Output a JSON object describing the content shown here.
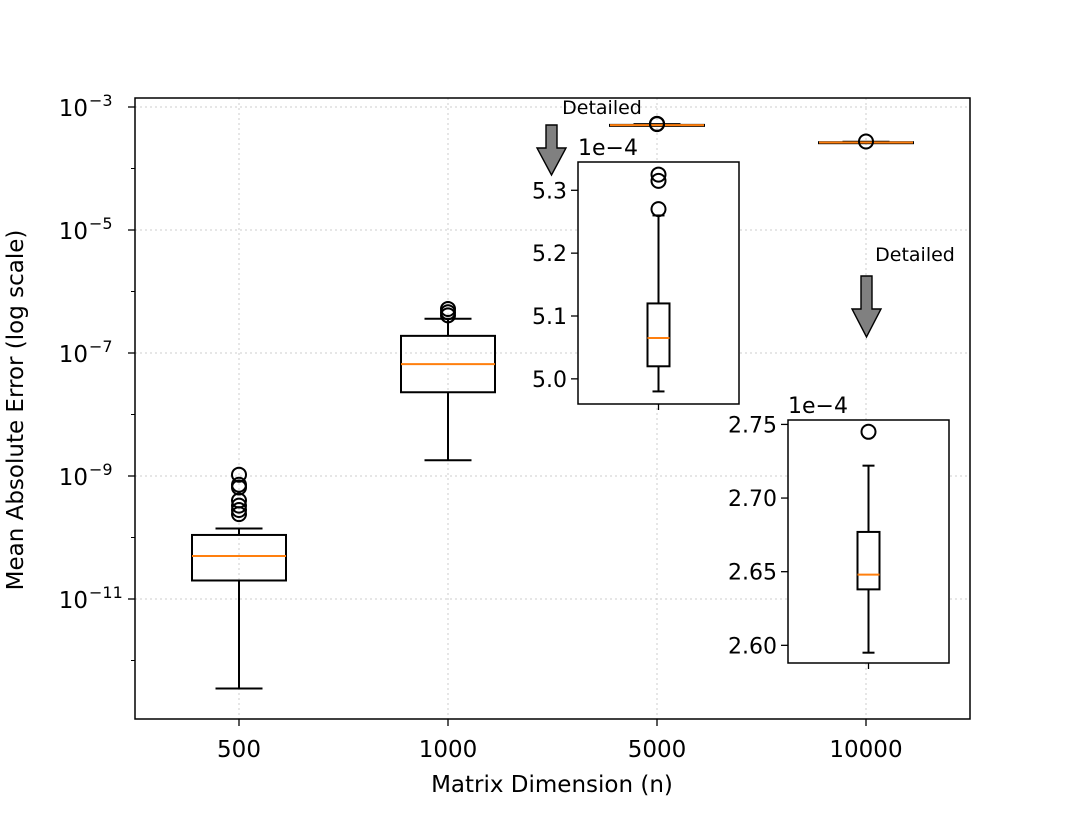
{
  "chart_data": [
    {
      "type": "box",
      "xlabel": "Matrix Dimension (n)",
      "ylabel": "Mean Absolute Error (log scale)",
      "yscale": "log",
      "ylim": [
        2e-13,
        0.0015
      ],
      "categories": [
        "500",
        "1000",
        "5000",
        "10000"
      ],
      "ytick_values": [
        1e-11,
        1e-09,
        1e-07,
        1e-05,
        0.001
      ],
      "ytick_mantissa": "10",
      "ytick_exponents": [
        "−11",
        "−9",
        "−7",
        "−5",
        "−3"
      ],
      "grid": true,
      "boxes": [
        {
          "category": "500",
          "whisker_low": 3.5e-13,
          "q1": 2e-11,
          "median": 5e-11,
          "q3": 1.1e-10,
          "whisker_high": 1.4e-10,
          "outliers": [
            2.4e-10,
            2.8e-10,
            3.3e-10,
            4e-10,
            6.5e-10,
            7.2e-10,
            1.05e-09
          ]
        },
        {
          "category": "1000",
          "whisker_low": 1.8e-09,
          "q1": 2.3e-08,
          "median": 6.6e-08,
          "q3": 1.9e-07,
          "whisker_high": 3.6e-07,
          "outliers": [
            4.1e-07,
            4.6e-07,
            5.2e-07
          ]
        },
        {
          "category": "5000",
          "whisker_low": 0.000498,
          "q1": 0.000502,
          "median": 0.0005065,
          "q3": 0.000512,
          "whisker_high": 0.000526,
          "outliers": [
            0.000527,
            0.0005315,
            0.0005325
          ]
        },
        {
          "category": "10000",
          "whisker_low": 0.0002595,
          "q1": 0.0002638,
          "median": 0.0002648,
          "q3": 0.0002677,
          "whisker_high": 0.0002722,
          "outliers": [
            0.0002745
          ]
        }
      ],
      "annotations": [
        {
          "text": "Detailed",
          "points_to": "5000"
        },
        {
          "text": "Detailed",
          "points_to": "10000"
        }
      ]
    },
    {
      "type": "box",
      "inset_of": "5000",
      "offset_label": "1e−4",
      "ylim": [
        4.96,
        5.345
      ],
      "yticks": [
        5.0,
        5.1,
        5.2,
        5.3
      ],
      "ytick_labels": [
        "5.0",
        "5.1",
        "5.2",
        "5.3"
      ],
      "box": {
        "whisker_low": 4.98,
        "q1": 5.02,
        "median": 5.065,
        "q3": 5.12,
        "whisker_high": 5.26,
        "outliers": [
          5.27,
          5.315,
          5.325
        ]
      }
    },
    {
      "type": "box",
      "inset_of": "10000",
      "offset_label": "1e−4",
      "ylim": [
        2.588,
        2.753
      ],
      "yticks": [
        2.6,
        2.65,
        2.7,
        2.75
      ],
      "ytick_labels": [
        "2.60",
        "2.65",
        "2.70",
        "2.75"
      ],
      "box": {
        "whisker_low": 2.595,
        "q1": 2.638,
        "median": 2.648,
        "q3": 2.677,
        "whisker_high": 2.722,
        "outliers": [
          2.745
        ]
      }
    }
  ],
  "colors": {
    "median": "#ff7f0e",
    "box": "#000000",
    "grid": "#cccccc",
    "arrow_fill": "#808080"
  }
}
